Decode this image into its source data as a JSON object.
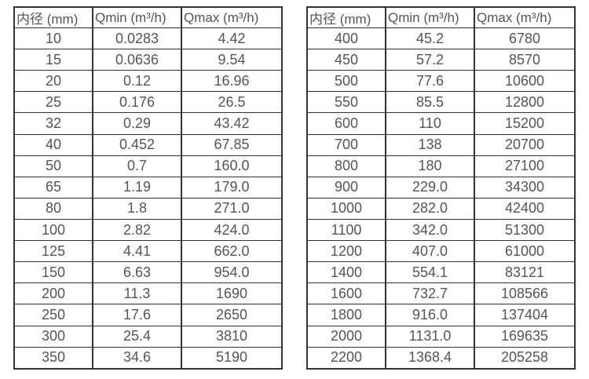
{
  "colors": {
    "border": "#333333",
    "text": "#555555",
    "background": "#ffffff"
  },
  "tables": [
    {
      "name": "flow-table-small-diameters",
      "column_keys": [
        "diameter",
        "qmin",
        "qmax"
      ],
      "headers": [
        "内径 (mm)",
        "Qmin (m³/h)",
        "Qmax (m³/h)"
      ],
      "rows": [
        [
          "10",
          "0.0283",
          "4.42"
        ],
        [
          "15",
          "0.0636",
          "9.54"
        ],
        [
          "20",
          "0.12",
          "16.96"
        ],
        [
          "25",
          "0.176",
          "26.5"
        ],
        [
          "32",
          "0.29",
          "43.42"
        ],
        [
          "40",
          "0.452",
          "67.85"
        ],
        [
          "50",
          "0.7",
          "160.0"
        ],
        [
          "65",
          "1.19",
          "179.0"
        ],
        [
          "80",
          "1.8",
          "271.0"
        ],
        [
          "100",
          "2.82",
          "424.0"
        ],
        [
          "125",
          "4.41",
          "662.0"
        ],
        [
          "150",
          "6.63",
          "954.0"
        ],
        [
          "200",
          "11.3",
          "1690"
        ],
        [
          "250",
          "17.6",
          "2650"
        ],
        [
          "300",
          "25.4",
          "3810"
        ],
        [
          "350",
          "34.6",
          "5190"
        ]
      ]
    },
    {
      "name": "flow-table-large-diameters",
      "column_keys": [
        "diameter",
        "qmin",
        "qmax"
      ],
      "headers": [
        "内径 (mm)",
        "Qmin (m³/h)",
        "Qmax (m³/h)"
      ],
      "rows": [
        [
          "400",
          "45.2",
          "6780"
        ],
        [
          "450",
          "57.2",
          "8570"
        ],
        [
          "500",
          "77.6",
          "10600"
        ],
        [
          "550",
          "85.5",
          "12800"
        ],
        [
          "600",
          "110",
          "15200"
        ],
        [
          "700",
          "138",
          "20700"
        ],
        [
          "800",
          "180",
          "27100"
        ],
        [
          "900",
          "229.0",
          "34300"
        ],
        [
          "1000",
          "282.0",
          "42400"
        ],
        [
          "1100",
          "342.0",
          "51300"
        ],
        [
          "1200",
          "407.0",
          "61000"
        ],
        [
          "1400",
          "554.1",
          "83121"
        ],
        [
          "1600",
          "732.7",
          "108566"
        ],
        [
          "1800",
          "916.0",
          "137404"
        ],
        [
          "2000",
          "1131.0",
          "169635"
        ],
        [
          "2200",
          "1368.4",
          "205258"
        ]
      ]
    }
  ]
}
